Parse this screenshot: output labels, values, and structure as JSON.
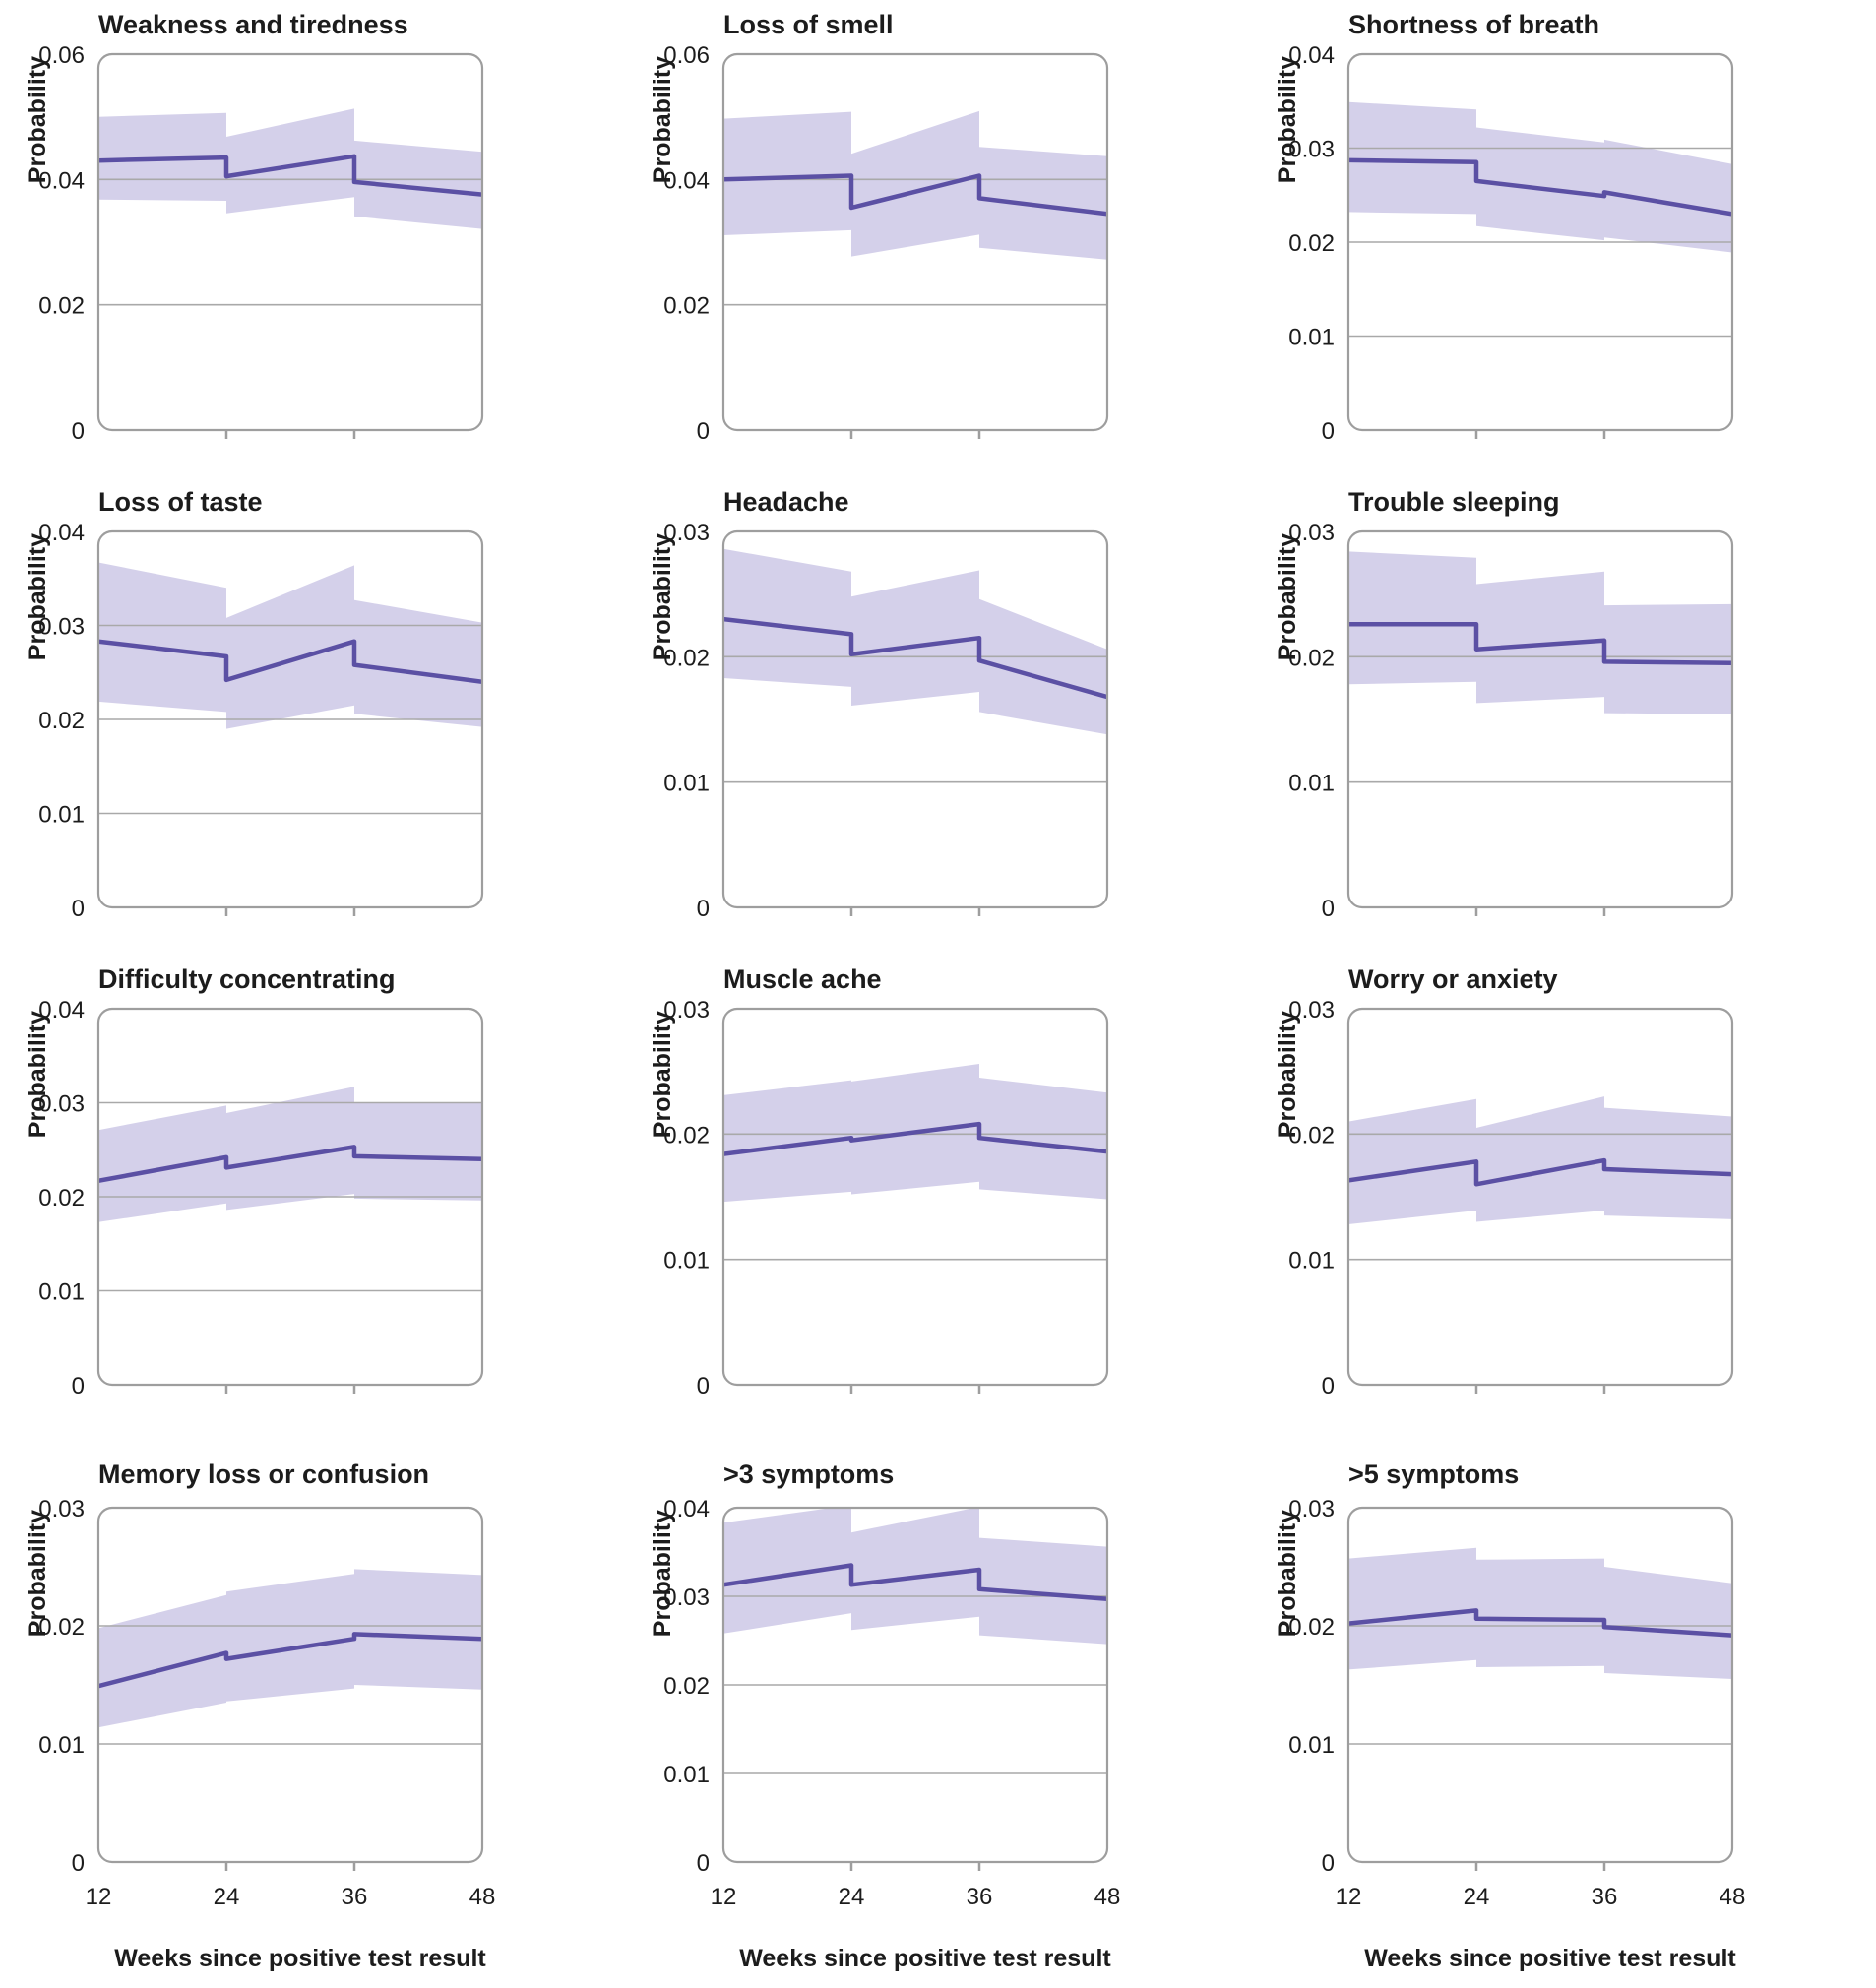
{
  "figure": {
    "ylabel": "Probability",
    "xlabel": "Weeks since positive test result",
    "x_range": [
      12,
      48
    ],
    "x_ticks": [
      12,
      24,
      36,
      48
    ],
    "x_tick_labels": [
      "12",
      "24",
      "36",
      "48"
    ],
    "colors": {
      "line": "#5b50a4",
      "band": "#d4d0ea",
      "grid": "#a9a9a9",
      "border": "#9e9e9e",
      "text": "#1c1c1c",
      "background": "#ffffff"
    }
  },
  "chart_data": [
    {
      "type": "line",
      "title": "Weakness and tiredness",
      "ylabel": "Probability",
      "xlabel": "",
      "x": [
        12,
        24,
        24,
        36,
        36,
        48
      ],
      "line": [
        0.043,
        0.0435,
        0.0405,
        0.0437,
        0.0396,
        0.0376
      ],
      "band_upper": [
        0.05,
        0.0506,
        0.0468,
        0.0513,
        0.0462,
        0.0444
      ],
      "band_lower": [
        0.0368,
        0.0366,
        0.0346,
        0.0372,
        0.0341,
        0.0321
      ],
      "ylim": [
        0,
        0.06
      ],
      "yticks": [
        0,
        0.02,
        0.04,
        0.06
      ],
      "ytick_labels": [
        "0",
        "0.02",
        "0.04",
        "0.06"
      ]
    },
    {
      "type": "line",
      "title": "Loss of smell",
      "ylabel": "Probability",
      "xlabel": "",
      "x": [
        12,
        24,
        24,
        36,
        36,
        48
      ],
      "line": [
        0.04,
        0.0406,
        0.0355,
        0.0406,
        0.037,
        0.0345
      ],
      "band_upper": [
        0.0497,
        0.0508,
        0.0441,
        0.0509,
        0.0452,
        0.0437
      ],
      "band_lower": [
        0.0311,
        0.0319,
        0.0277,
        0.0312,
        0.0291,
        0.0272
      ],
      "ylim": [
        0,
        0.06
      ],
      "yticks": [
        0,
        0.02,
        0.04,
        0.06
      ],
      "ytick_labels": [
        "0",
        "0.02",
        "0.04",
        "0.06"
      ]
    },
    {
      "type": "line",
      "title": "Shortness of breath",
      "ylabel": "Probability",
      "xlabel": "",
      "x": [
        12,
        24,
        24,
        36,
        36,
        48
      ],
      "line": [
        0.0287,
        0.0285,
        0.0265,
        0.0249,
        0.0253,
        0.023
      ],
      "band_upper": [
        0.0349,
        0.0341,
        0.0322,
        0.0306,
        0.0309,
        0.0283
      ],
      "band_lower": [
        0.0232,
        0.023,
        0.0217,
        0.0202,
        0.0205,
        0.0189
      ],
      "ylim": [
        0,
        0.04
      ],
      "yticks": [
        0,
        0.01,
        0.02,
        0.03,
        0.04
      ],
      "ytick_labels": [
        "0",
        "0.01",
        "0.02",
        "0.03",
        "0.04"
      ]
    },
    {
      "type": "line",
      "title": "Loss of taste",
      "ylabel": "Probability",
      "xlabel": "",
      "x": [
        12,
        24,
        24,
        36,
        36,
        48
      ],
      "line": [
        0.0283,
        0.0267,
        0.0242,
        0.0283,
        0.0258,
        0.024
      ],
      "band_upper": [
        0.0367,
        0.034,
        0.0308,
        0.0364,
        0.0327,
        0.0303
      ],
      "band_lower": [
        0.0219,
        0.0208,
        0.019,
        0.0215,
        0.0206,
        0.0192
      ],
      "ylim": [
        0,
        0.04
      ],
      "yticks": [
        0,
        0.01,
        0.02,
        0.03,
        0.04
      ],
      "ytick_labels": [
        "0",
        "0.01",
        "0.02",
        "0.03",
        "0.04"
      ]
    },
    {
      "type": "line",
      "title": "Headache",
      "ylabel": "Probability",
      "xlabel": "",
      "x": [
        12,
        24,
        24,
        36,
        36,
        48
      ],
      "line": [
        0.023,
        0.0218,
        0.0202,
        0.0215,
        0.0197,
        0.0168
      ],
      "band_upper": [
        0.0286,
        0.0268,
        0.0248,
        0.0269,
        0.0246,
        0.0206
      ],
      "band_lower": [
        0.0183,
        0.0176,
        0.0161,
        0.0172,
        0.0156,
        0.0138
      ],
      "ylim": [
        0,
        0.03
      ],
      "yticks": [
        0,
        0.01,
        0.02,
        0.03
      ],
      "ytick_labels": [
        "0",
        "0.01",
        "0.02",
        "0.03"
      ]
    },
    {
      "type": "line",
      "title": "Trouble sleeping",
      "ylabel": "Probability",
      "xlabel": "",
      "x": [
        12,
        24,
        24,
        36,
        36,
        48
      ],
      "line": [
        0.0226,
        0.0226,
        0.0206,
        0.0213,
        0.0196,
        0.0195
      ],
      "band_upper": [
        0.0284,
        0.0279,
        0.0258,
        0.0268,
        0.0241,
        0.0242
      ],
      "band_lower": [
        0.0178,
        0.018,
        0.0163,
        0.0168,
        0.0155,
        0.0154
      ],
      "ylim": [
        0,
        0.03
      ],
      "yticks": [
        0,
        0.01,
        0.02,
        0.03
      ],
      "ytick_labels": [
        "0",
        "0.01",
        "0.02",
        "0.03"
      ]
    },
    {
      "type": "line",
      "title": "Difficulty concentrating",
      "ylabel": "Probability",
      "xlabel": "",
      "x": [
        12,
        24,
        24,
        36,
        36,
        48
      ],
      "line": [
        0.0217,
        0.0242,
        0.0231,
        0.0253,
        0.0243,
        0.024
      ],
      "band_upper": [
        0.0271,
        0.0297,
        0.0289,
        0.0317,
        0.03,
        0.03
      ],
      "band_lower": [
        0.0173,
        0.0193,
        0.0186,
        0.0203,
        0.0198,
        0.0196
      ],
      "ylim": [
        0,
        0.04
      ],
      "yticks": [
        0,
        0.01,
        0.02,
        0.03,
        0.04
      ],
      "ytick_labels": [
        "0",
        "0.01",
        "0.02",
        "0.03",
        "0.04"
      ]
    },
    {
      "type": "line",
      "title": "Muscle ache",
      "ylabel": "Probability",
      "xlabel": "",
      "x": [
        12,
        24,
        24,
        36,
        36,
        48
      ],
      "line": [
        0.0184,
        0.0197,
        0.0195,
        0.0208,
        0.0197,
        0.0186
      ],
      "band_upper": [
        0.0231,
        0.0243,
        0.0242,
        0.0256,
        0.0245,
        0.0233
      ],
      "band_lower": [
        0.0146,
        0.0154,
        0.0152,
        0.0162,
        0.0156,
        0.0148
      ],
      "ylim": [
        0,
        0.03
      ],
      "yticks": [
        0,
        0.01,
        0.02,
        0.03
      ],
      "ytick_labels": [
        "0",
        "0.01",
        "0.02",
        "0.03"
      ]
    },
    {
      "type": "line",
      "title": "Worry or anxiety",
      "ylabel": "Probability",
      "xlabel": "",
      "x": [
        12,
        24,
        24,
        36,
        36,
        48
      ],
      "line": [
        0.0163,
        0.0178,
        0.016,
        0.0179,
        0.0172,
        0.0168
      ],
      "band_upper": [
        0.021,
        0.0228,
        0.0205,
        0.023,
        0.0221,
        0.0214
      ],
      "band_lower": [
        0.0128,
        0.0139,
        0.013,
        0.0139,
        0.0135,
        0.0132
      ],
      "ylim": [
        0,
        0.03
      ],
      "yticks": [
        0,
        0.01,
        0.02,
        0.03
      ],
      "ytick_labels": [
        "0",
        "0.01",
        "0.02",
        "0.03"
      ]
    },
    {
      "type": "line",
      "title": "Memory loss or confusion",
      "ylabel": "Probability",
      "xlabel": "Weeks since positive test result",
      "x": [
        12,
        24,
        24,
        36,
        36,
        48
      ],
      "line": [
        0.0149,
        0.0177,
        0.0172,
        0.0189,
        0.0193,
        0.0189
      ],
      "band_upper": [
        0.0198,
        0.0226,
        0.0229,
        0.0244,
        0.0248,
        0.0243
      ],
      "band_lower": [
        0.0114,
        0.0135,
        0.0136,
        0.0147,
        0.015,
        0.0146
      ],
      "ylim": [
        0,
        0.03
      ],
      "yticks": [
        0,
        0.01,
        0.02,
        0.03
      ],
      "ytick_labels": [
        "0",
        "0.01",
        "0.02",
        "0.03"
      ]
    },
    {
      "type": "line",
      "title": ">3 symptoms",
      "ylabel": "Probability",
      "xlabel": "Weeks since positive test result",
      "x": [
        12,
        24,
        24,
        36,
        36,
        48
      ],
      "line": [
        0.0313,
        0.0335,
        0.0313,
        0.033,
        0.0308,
        0.0297
      ],
      "band_upper": [
        0.0383,
        0.0403,
        0.0372,
        0.0401,
        0.0366,
        0.0356
      ],
      "band_lower": [
        0.0258,
        0.0281,
        0.0262,
        0.0277,
        0.0256,
        0.0246
      ],
      "ylim": [
        0,
        0.04
      ],
      "yticks": [
        0,
        0.01,
        0.02,
        0.03,
        0.04
      ],
      "ytick_labels": [
        "0",
        "0.01",
        "0.02",
        "0.03",
        "0.04"
      ]
    },
    {
      "type": "line",
      "title": ">5 symptoms",
      "ylabel": "Probability",
      "xlabel": "Weeks since positive test result",
      "x": [
        12,
        24,
        24,
        36,
        36,
        48
      ],
      "line": [
        0.0202,
        0.0213,
        0.0206,
        0.0205,
        0.0199,
        0.0192
      ],
      "band_upper": [
        0.0257,
        0.0266,
        0.0256,
        0.0257,
        0.025,
        0.0236
      ],
      "band_lower": [
        0.0163,
        0.0171,
        0.0165,
        0.0166,
        0.016,
        0.0155
      ],
      "ylim": [
        0,
        0.03
      ],
      "yticks": [
        0,
        0.01,
        0.02,
        0.03
      ],
      "ytick_labels": [
        "0",
        "0.01",
        "0.02",
        "0.03"
      ]
    }
  ]
}
